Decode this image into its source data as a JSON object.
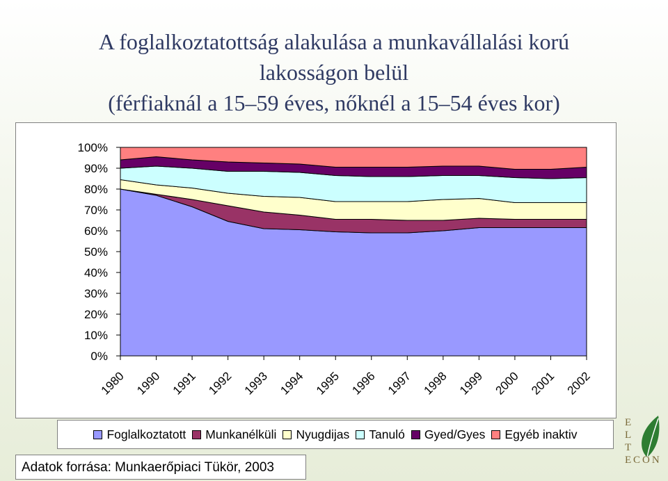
{
  "title_lines": [
    "A foglalkoztatottság alakulása a munkavállalási korú",
    "lakosságon belül",
    "(férfiaknál a 15–59 éves, nőknél a 15–54 éves kor)"
  ],
  "source": "Adatok forrása: Munkaerőpiaci Tükör, 2003",
  "logo": {
    "letters": [
      "E",
      "L",
      "T",
      "E",
      "CON"
    ]
  },
  "colors": {
    "Foglalkoztatott": "#9999ff",
    "Munkanélküli": "#993366",
    "Nyugdijas": "#ffffcc",
    "Tanuló": "#ccffff",
    "Gyed/Gyes": "#660066",
    "Egyéb inaktív": "#ff8080"
  },
  "chart_data": {
    "type": "area",
    "stacked": true,
    "percent": true,
    "x": [
      "1980",
      "1990",
      "1991",
      "1992",
      "1993",
      "1994",
      "1995",
      "1996",
      "1997",
      "1998",
      "1999",
      "2000",
      "2001",
      "2002"
    ],
    "ylim": [
      0,
      100
    ],
    "yticks": [
      "0%",
      "10%",
      "20%",
      "30%",
      "40%",
      "50%",
      "60%",
      "70%",
      "80%",
      "90%",
      "100%"
    ],
    "legend_position": "bottom",
    "series": [
      {
        "name": "Foglalkoztatott",
        "values": [
          80,
          77,
          71.5,
          64.5,
          61,
          60.5,
          59.5,
          59,
          59,
          60,
          61.5,
          61.5,
          61.5,
          61.5
        ]
      },
      {
        "name": "Munkanélküli",
        "values": [
          0,
          0.5,
          3.5,
          7.5,
          8,
          7,
          6,
          6.5,
          6,
          5,
          4.5,
          4,
          4,
          4
        ]
      },
      {
        "name": "Nyugdijas",
        "values": [
          4.5,
          4.5,
          5.5,
          6,
          7.5,
          8.5,
          8.5,
          8.5,
          9,
          10,
          9.5,
          8,
          8,
          8
        ]
      },
      {
        "name": "Tanuló",
        "values": [
          5.5,
          9,
          9.5,
          10.5,
          12,
          12,
          12.5,
          12,
          12,
          11.5,
          11,
          12,
          11.5,
          12
        ]
      },
      {
        "name": "Gyed/Gyes",
        "values": [
          4,
          4.5,
          4,
          4.5,
          4,
          4,
          4,
          4.5,
          4.5,
          4.5,
          4.5,
          4,
          4.5,
          5
        ]
      },
      {
        "name": "Egyéb inaktív",
        "values": [
          6,
          4.5,
          6,
          7,
          7.5,
          8,
          9.5,
          9.5,
          9.5,
          9,
          9,
          10.5,
          10.5,
          9.5
        ]
      }
    ],
    "legend": [
      "Foglalkoztatott",
      "Munkanélküli",
      "Nyugdijas",
      "Tanuló",
      "Gyed/Gyes",
      "Egyéb inaktiv"
    ]
  }
}
